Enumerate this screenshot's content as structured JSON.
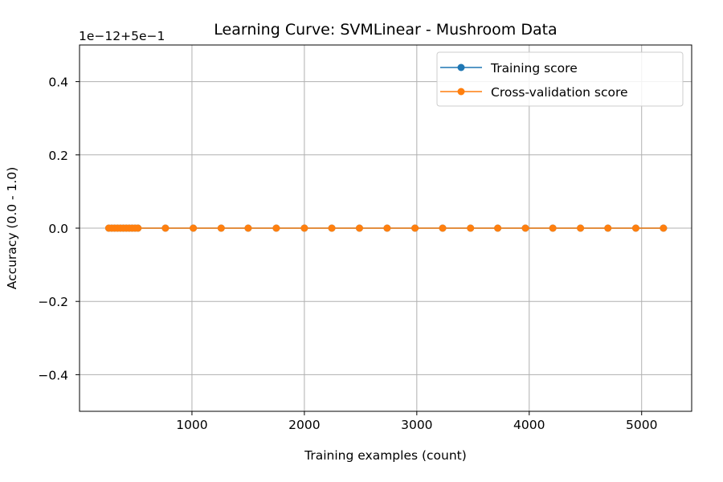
{
  "chart_data": {
    "type": "line",
    "title": "Learning Curve: SVMLinear - Mushroom Data",
    "xlabel": "Training examples (count)",
    "ylabel": "Accuracy (0.0 - 1.0)",
    "offset_text": "1e−12+5e−1",
    "xlim": [
      0,
      5445
    ],
    "ylim": [
      -0.5,
      0.5
    ],
    "xticks": [
      1000,
      2000,
      3000,
      4000,
      5000
    ],
    "yticks": [
      -0.4,
      -0.2,
      0.0,
      0.2,
      0.4
    ],
    "ytick_labels": [
      "−0.4",
      "−0.2",
      "0.0",
      "0.2",
      "0.4"
    ],
    "grid": true,
    "legend_position": "top-right",
    "x": [
      260,
      286,
      312,
      338,
      364,
      390,
      416,
      442,
      468,
      494,
      520,
      764,
      1012,
      1260,
      1500,
      1750,
      2000,
      2244,
      2490,
      2736,
      2984,
      3230,
      3478,
      3720,
      3966,
      4210,
      4456,
      4700,
      4948,
      5194
    ],
    "series": [
      {
        "name": "Training score",
        "color": "#1f77b4",
        "values": [
          0,
          0,
          0,
          0,
          0,
          0,
          0,
          0,
          0,
          0,
          0,
          0,
          0,
          0,
          0,
          0,
          0,
          0,
          0,
          0,
          0,
          0,
          0,
          0,
          0,
          0,
          0,
          0,
          0,
          0
        ]
      },
      {
        "name": "Cross-validation score",
        "color": "#ff7f0e",
        "values": [
          0,
          0,
          0,
          0,
          0,
          0,
          0,
          0,
          0,
          0,
          0,
          0,
          0,
          0,
          0,
          0,
          0,
          0,
          0,
          0,
          0,
          0,
          0,
          0,
          0,
          0,
          0,
          0,
          0,
          0
        ]
      }
    ]
  }
}
